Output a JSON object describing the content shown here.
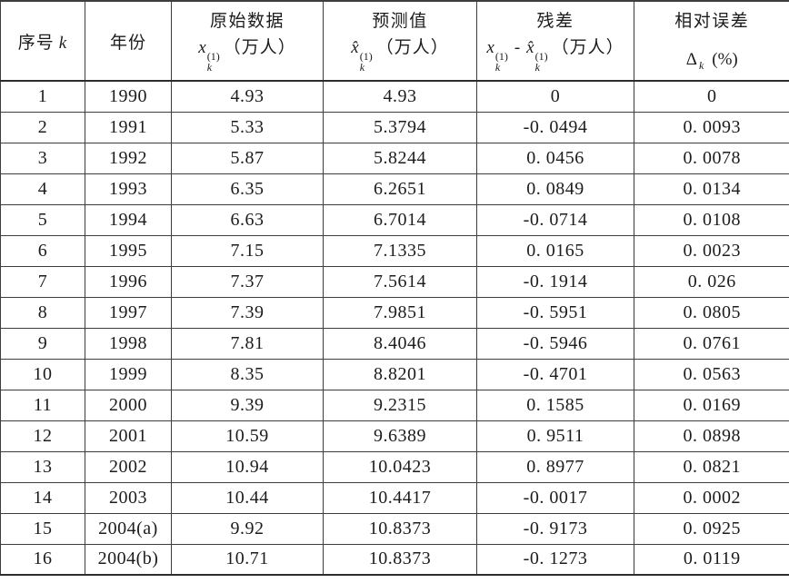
{
  "table": {
    "header": {
      "seq": {
        "label": "序号",
        "var": "k"
      },
      "year": "年份",
      "original": {
        "title": "原始数据",
        "base": "x",
        "sup": "(1)",
        "sub": "k",
        "unit": "（万人）"
      },
      "predicted": {
        "title": "预测值",
        "base": "x̂",
        "sup": "(1)",
        "sub": "k",
        "unit": "（万人）"
      },
      "residual": {
        "title": "残差",
        "base1": "x",
        "sup1": "(1)",
        "sub1": "k",
        "minus": "-",
        "base2": "x̂",
        "sup2": "(1)",
        "sub2": "k",
        "unit": "（万人）"
      },
      "rel_error": {
        "title": "相对误差",
        "symbol": "Δ",
        "sub": "k",
        "unit": "(%)"
      }
    },
    "rows": [
      [
        "1",
        "1990",
        "4.93",
        "4.93",
        "0",
        "0"
      ],
      [
        "2",
        "1991",
        "5.33",
        "5.3794",
        "-0. 0494",
        "0. 0093"
      ],
      [
        "3",
        "1992",
        "5.87",
        "5.8244",
        "0. 0456",
        "0. 0078"
      ],
      [
        "4",
        "1993",
        "6.35",
        "6.2651",
        "0. 0849",
        "0. 0134"
      ],
      [
        "5",
        "1994",
        "6.63",
        "6.7014",
        "-0. 0714",
        "0. 0108"
      ],
      [
        "6",
        "1995",
        "7.15",
        "7.1335",
        "0. 0165",
        "0. 0023"
      ],
      [
        "7",
        "1996",
        "7.37",
        "7.5614",
        "-0. 1914",
        "0. 026"
      ],
      [
        "8",
        "1997",
        "7.39",
        "7.9851",
        "-0. 5951",
        "0. 0805"
      ],
      [
        "9",
        "1998",
        "7.81",
        "8.4046",
        "-0. 5946",
        "0. 0761"
      ],
      [
        "10",
        "1999",
        "8.35",
        "8.8201",
        "-0. 4701",
        "0. 0563"
      ],
      [
        "11",
        "2000",
        "9.39",
        "9.2315",
        "0. 1585",
        "0. 0169"
      ],
      [
        "12",
        "2001",
        "10.59",
        "9.6389",
        "0. 9511",
        "0. 0898"
      ],
      [
        "13",
        "2002",
        "10.94",
        "10.0423",
        "0. 8977",
        "0. 0821"
      ],
      [
        "14",
        "2003",
        "10.44",
        "10.4417",
        "-0. 0017",
        "0. 0002"
      ],
      [
        "15",
        "2004(a)",
        "9.92",
        "10.8373",
        "-0. 9173",
        "0. 0925"
      ],
      [
        "16",
        "2004(b)",
        "10.71",
        "10.8373",
        "-0. 1273",
        "0. 0119"
      ]
    ]
  }
}
